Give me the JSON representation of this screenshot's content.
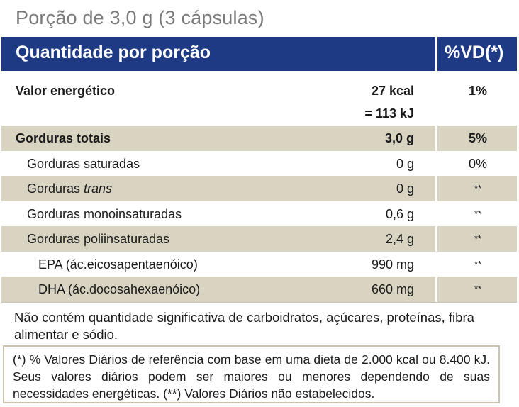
{
  "serving": "Porção de 3,0 g (3 cápsulas)",
  "header": {
    "left": "Quantidade por porção",
    "right": "%VD(*)"
  },
  "rows": [
    {
      "name": "Valor energético",
      "amount": "27 kcal",
      "amount2": "= 113 kJ",
      "vd": "1%"
    },
    {
      "name": "Gorduras totais",
      "amount": "3,0 g",
      "vd": "5%"
    },
    {
      "name": "Gorduras saturadas",
      "amount": "0 g",
      "vd": "0%"
    },
    {
      "name": "Gorduras ",
      "name_italic": "trans",
      "amount": "0 g",
      "vd": "**"
    },
    {
      "name": "Gorduras monoinsaturadas",
      "amount": "0,6 g",
      "vd": "**"
    },
    {
      "name": "Gorduras poliinsaturadas",
      "amount": "2,4 g",
      "vd": "**"
    },
    {
      "name": "EPA (ác.eicosapentaenóico)",
      "amount": "990 mg",
      "vd": "**"
    },
    {
      "name": "DHA (ác.docosahexaenóico)",
      "amount": "660 mg",
      "vd": "**"
    }
  ],
  "note_main": "Não contém quantidade significativa de carboidratos, açúcares, proteínas, fibra alimentar e sódio.",
  "note_footer": "(*) % Valores Diários de referência com base em uma dieta de 2.000 kcal ou 8.400 kJ. Seus valores diários podem ser maiores ou menores dependendo de suas necessidades energéticas. (**) Valores Diários não estabelecidos.",
  "colors": {
    "header_bg": "#1f3a84",
    "shade_bg": "#d9d3c2",
    "border": "#c9c2ae"
  }
}
